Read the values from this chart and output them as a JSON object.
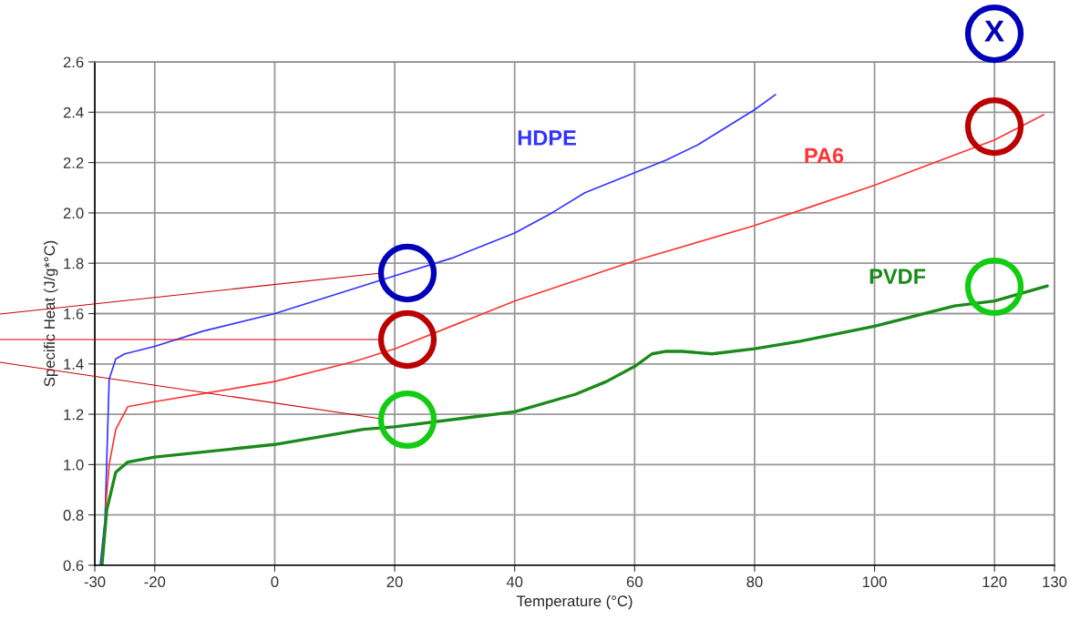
{
  "chart_data": {
    "type": "line",
    "xlabel": "Temperature (°C)",
    "ylabel": "Specific Heat (J/g*°C)",
    "xlim": [
      -30,
      130
    ],
    "xticks": [
      -30,
      -20,
      0,
      20,
      40,
      60,
      80,
      100,
      120,
      130
    ],
    "ylim": [
      0.6,
      2.6
    ],
    "yticks": [
      0.6,
      0.8,
      {
        "value": 1.0,
        "label": "1.0"
      },
      1.2,
      1.4,
      1.6,
      1.8,
      {
        "value": 2.0,
        "label": "2.0"
      },
      2.2,
      2.4,
      2.6
    ],
    "grid": true,
    "legend": false,
    "marker": "none",
    "line_style": "solid",
    "annotations": [
      "X"
    ],
    "series": [
      {
        "name": "HDPE",
        "color": "#3333ff",
        "x": [
          -29.1,
          -28.3,
          -27.6,
          -26.5,
          -25,
          -20,
          -12,
          0,
          20,
          29.5,
          40,
          46.2,
          51.7,
          60,
          65.3,
          70.5,
          80,
          83.5
        ],
        "values": [
          0.6,
          0.78,
          1.34,
          1.42,
          1.44,
          1.47,
          1.53,
          1.6,
          1.75,
          1.82,
          1.92,
          2.0,
          2.08,
          2.16,
          2.21,
          2.27,
          2.41,
          2.47
        ]
      },
      {
        "name": "PA6",
        "color": "#ff3333",
        "x": [
          -28.2,
          -27.6,
          -26.5,
          -24.5,
          -20,
          0,
          13.3,
          20,
          40,
          60,
          80,
          87.6,
          100,
          120,
          128.2
        ],
        "values": [
          0.83,
          1.0,
          1.14,
          1.23,
          1.25,
          1.33,
          1.41,
          1.46,
          1.65,
          1.81,
          1.95,
          2.01,
          2.11,
          2.29,
          2.39
        ]
      },
      {
        "name": "PVDF",
        "color": "#1a8a1a",
        "x": [
          -28.8,
          -28,
          -26.5,
          -24.5,
          -20,
          0,
          14.8,
          20,
          40,
          50.2,
          55.3,
          60,
          62.9,
          65.3,
          67.9,
          72.9,
          80,
          87.6,
          100,
          113.3,
          120,
          128.8
        ],
        "values": [
          0.6,
          0.82,
          0.97,
          1.01,
          1.03,
          1.08,
          1.14,
          1.15,
          1.21,
          1.28,
          1.33,
          1.39,
          1.44,
          1.45,
          1.45,
          1.44,
          1.46,
          1.49,
          1.55,
          1.63,
          1.65,
          1.71
        ]
      }
    ]
  }
}
